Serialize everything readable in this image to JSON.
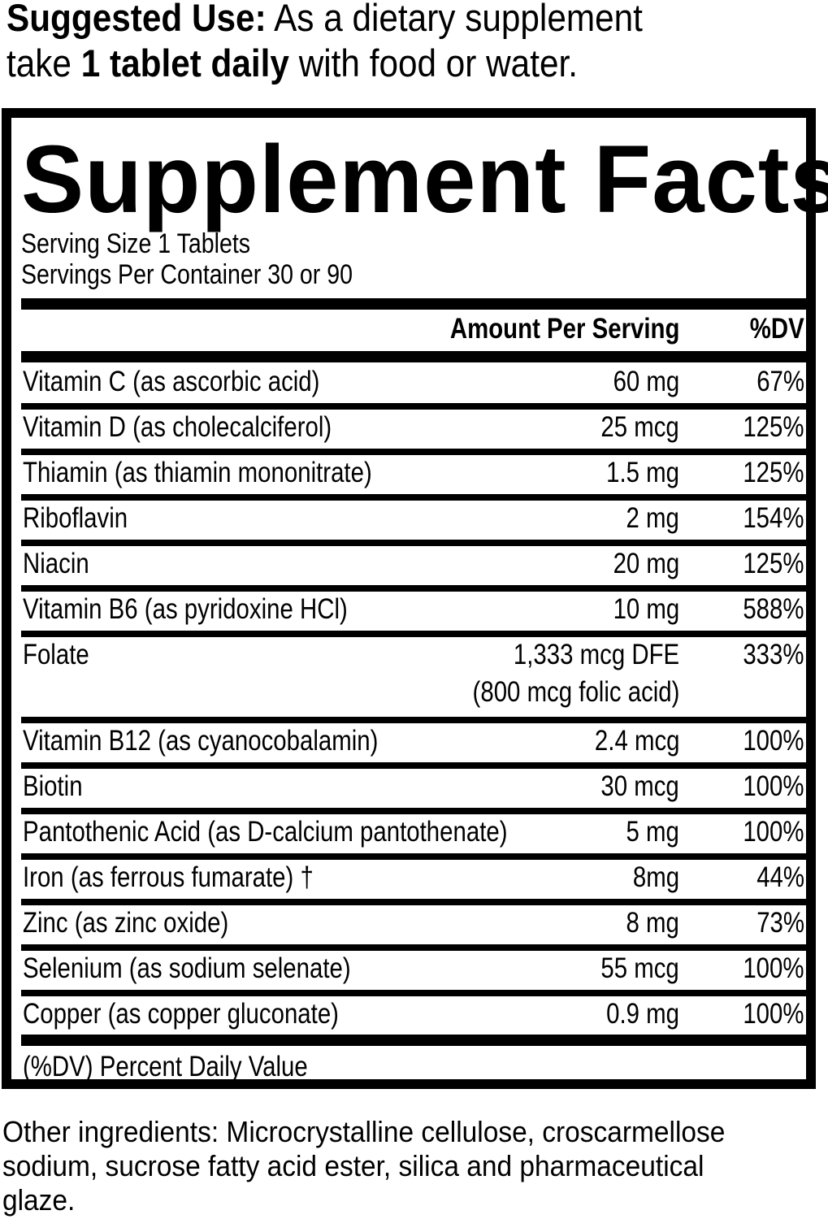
{
  "suggested_use": {
    "label": "Suggested Use:",
    "text_1": " As a dietary supplement",
    "text_2_pre": "take ",
    "text_2_bold": "1 tablet daily",
    "text_2_post": " with food or water."
  },
  "facts": {
    "title": "Supplement Facts",
    "serving_size": "Serving Size 1 Tablets",
    "servings_per_container": "Servings Per Container 30 or 90",
    "header_amount": "Amount Per Serving",
    "header_dv": "%DV",
    "rows": [
      {
        "name": "Vitamin C (as ascorbic acid)",
        "amount": "60 mg",
        "dv": "67%"
      },
      {
        "name": "Vitamin D (as cholecalciferol)",
        "amount": "25 mcg",
        "dv": "125%"
      },
      {
        "name": " Thiamin (as thiamin mononitrate)",
        "amount": "1.5 mg",
        "dv": "125%"
      },
      {
        "name": "Riboflavin",
        "amount": "2 mg",
        "dv": "154%"
      },
      {
        "name": "Niacin",
        "amount": "20 mg",
        "dv": "125%"
      },
      {
        "name": "Vitamin B6 (as pyridoxine HCl)",
        "amount": "10 mg",
        "dv": "588%"
      },
      {
        "name": "Folate",
        "amount": "1,333 mcg DFE",
        "amount_2": "(800 mcg folic acid)",
        "dv": "333%"
      },
      {
        "name": " Vitamin B12 (as cyanocobalamin)",
        "amount": "2.4 mcg",
        "dv": "100%"
      },
      {
        "name": "Biotin",
        "amount": "30 mcg",
        "dv": "100%"
      },
      {
        "name": " Pantothenic Acid (as D-calcium pantothenate)",
        "amount": "5 mg",
        "dv": "100%"
      },
      {
        "name": "Iron (as ferrous fumarate) †",
        "amount": "8mg",
        "dv": "44%"
      },
      {
        "name": "Zinc (as zinc oxide)",
        "amount": "8 mg",
        "dv": "73%"
      },
      {
        "name": "Selenium (as sodium selenate)",
        "amount": "55 mcg",
        "dv": "100%"
      },
      {
        "name": "Copper (as copper gluconate)",
        "amount": "0.9 mg",
        "dv": "100%"
      }
    ],
    "footnote": "(%DV) Percent Daily Value"
  },
  "other_ingredients": {
    "line_1": "Other ingredients: Microcrystalline cellulose, croscarmellose",
    "line_2": "sodium, sucrose fatty acid ester, silica and pharmaceutical",
    "line_3": "glaze."
  }
}
